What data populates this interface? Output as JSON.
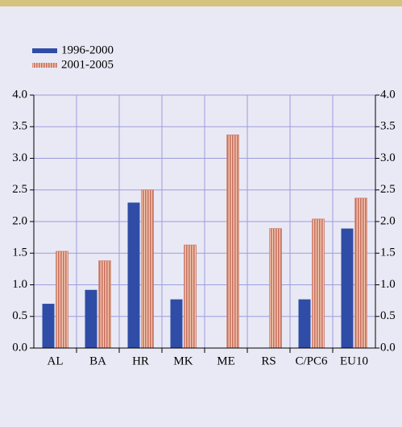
{
  "chart_data": {
    "type": "bar",
    "categories": [
      "AL",
      "BA",
      "HR",
      "MK",
      "ME",
      "RS",
      "C/PC6",
      "EU10"
    ],
    "series": [
      {
        "name": "1996-2000",
        "color": "#2f4da6",
        "values": [
          0.7,
          0.92,
          2.3,
          0.77,
          null,
          null,
          0.77,
          1.89
        ]
      },
      {
        "name": "2001-2005",
        "color": "#c8705e",
        "values": [
          1.53,
          1.38,
          2.5,
          1.63,
          3.37,
          1.89,
          2.04,
          2.37
        ]
      }
    ],
    "ylim": [
      0,
      4
    ],
    "yticks": [
      {
        "value": 0,
        "label": "0.0"
      },
      0.5,
      {
        "value": 1,
        "label": "1.0"
      },
      1.5,
      {
        "value": 2,
        "label": "2.0"
      },
      2.5,
      {
        "value": 3,
        "label": "3.0"
      },
      3.5,
      {
        "value": 4,
        "label": "4.0"
      }
    ],
    "y2lim": [
      0,
      4
    ],
    "y2ticks": [
      {
        "value": 0,
        "label": "0.0"
      },
      0.5,
      {
        "value": 1,
        "label": "1.0"
      },
      1.5,
      {
        "value": 2,
        "label": "2.0"
      },
      2.5,
      {
        "value": 3,
        "label": "3.0"
      },
      3.5,
      {
        "value": 4,
        "label": "4.0"
      }
    ],
    "grid": true,
    "legend": "top-left"
  }
}
